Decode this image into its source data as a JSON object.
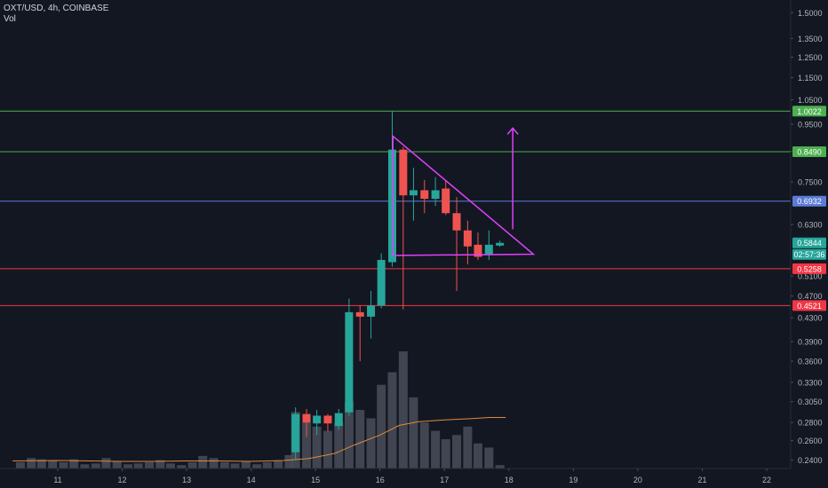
{
  "header": {
    "symbol_line": "OXT/USD, 4h, COINBASE",
    "volume_label": "Vol"
  },
  "colors": {
    "background": "#131722",
    "bull": "#26a69a",
    "bear": "#ef5350",
    "volume": "#4a4e59",
    "volume_ma": "#e08a3c",
    "resistance": "#4caf50",
    "support": "#f23645",
    "mid_level": "#5b7bd6",
    "pattern": "#e040fb",
    "axis_text": "#b2b5be"
  },
  "chart_data": {
    "type": "candlestick",
    "title": "OXT/USD, 4h, COINBASE",
    "y_axis": {
      "scale": "log",
      "ylim": [
        0.232,
        1.58
      ],
      "ticks": [
        "1.5000",
        "1.3500",
        "1.2500",
        "1.1500",
        "1.0500",
        "0.9500",
        "0.8500",
        "0.7500",
        "0.6300",
        "0.5100",
        "0.4700",
        "0.4300",
        "0.3900",
        "0.3600",
        "0.3300",
        "0.3050",
        "0.2800",
        "0.2600",
        "0.2400"
      ]
    },
    "x_axis": {
      "ticks": [
        "11",
        "12",
        "13",
        "14",
        "15",
        "16",
        "17",
        "18",
        "19",
        "20",
        "21",
        "22"
      ],
      "tick_day": [
        11,
        12,
        13,
        14,
        15,
        16,
        17,
        18,
        19,
        20,
        21,
        22
      ]
    },
    "candles": [
      {
        "t": 14.69,
        "o": 0.248,
        "h": 0.298,
        "l": 0.24,
        "c": 0.29
      },
      {
        "t": 14.86,
        "o": 0.29,
        "h": 0.296,
        "l": 0.264,
        "c": 0.28
      },
      {
        "t": 15.02,
        "o": 0.279,
        "h": 0.295,
        "l": 0.266,
        "c": 0.288
      },
      {
        "t": 15.19,
        "o": 0.288,
        "h": 0.29,
        "l": 0.27,
        "c": 0.279
      },
      {
        "t": 15.36,
        "o": 0.276,
        "h": 0.296,
        "l": 0.272,
        "c": 0.291
      },
      {
        "t": 15.52,
        "o": 0.292,
        "h": 0.465,
        "l": 0.288,
        "c": 0.44
      },
      {
        "t": 15.69,
        "o": 0.44,
        "h": 0.452,
        "l": 0.36,
        "c": 0.432
      },
      {
        "t": 15.86,
        "o": 0.432,
        "h": 0.48,
        "l": 0.395,
        "c": 0.452
      },
      {
        "t": 16.02,
        "o": 0.452,
        "h": 0.56,
        "l": 0.447,
        "c": 0.545
      },
      {
        "t": 16.19,
        "o": 0.54,
        "h": 1.003,
        "l": 0.53,
        "c": 0.856
      },
      {
        "t": 16.36,
        "o": 0.856,
        "h": 0.865,
        "l": 0.445,
        "c": 0.71
      },
      {
        "t": 16.52,
        "o": 0.71,
        "h": 0.795,
        "l": 0.64,
        "c": 0.725
      },
      {
        "t": 16.69,
        "o": 0.725,
        "h": 0.756,
        "l": 0.66,
        "c": 0.7
      },
      {
        "t": 16.86,
        "o": 0.7,
        "h": 0.765,
        "l": 0.68,
        "c": 0.725
      },
      {
        "t": 17.02,
        "o": 0.73,
        "h": 0.755,
        "l": 0.655,
        "c": 0.66
      },
      {
        "t": 17.19,
        "o": 0.66,
        "h": 0.705,
        "l": 0.48,
        "c": 0.615
      },
      {
        "t": 17.36,
        "o": 0.615,
        "h": 0.64,
        "l": 0.535,
        "c": 0.576
      },
      {
        "t": 17.52,
        "o": 0.58,
        "h": 0.61,
        "l": 0.545,
        "c": 0.552
      },
      {
        "t": 17.69,
        "o": 0.556,
        "h": 0.615,
        "l": 0.545,
        "c": 0.58
      },
      {
        "t": 17.86,
        "o": 0.578,
        "h": 0.59,
        "l": 0.575,
        "c": 0.5844
      }
    ],
    "volume": {
      "t": [
        10.42,
        10.59,
        10.75,
        10.92,
        11.09,
        11.25,
        11.42,
        11.59,
        11.75,
        11.92,
        12.09,
        12.25,
        12.42,
        12.59,
        12.75,
        12.92,
        13.09,
        13.25,
        13.42,
        13.59,
        13.75,
        13.92,
        14.09,
        14.25,
        14.42,
        14.59,
        14.69,
        14.86,
        15.02,
        15.19,
        15.36,
        15.52,
        15.69,
        15.86,
        16.02,
        16.19,
        16.36,
        16.52,
        16.69,
        16.86,
        17.02,
        17.19,
        17.36,
        17.52,
        17.69,
        17.86
      ],
      "v": [
        1.5,
        2.5,
        2.2,
        1.8,
        1.5,
        2.2,
        1.0,
        1.2,
        2.5,
        1.8,
        1.0,
        1.2,
        1.5,
        2.0,
        1.2,
        0.8,
        1.5,
        3.0,
        2.5,
        1.5,
        1.2,
        1.8,
        1.0,
        1.5,
        1.8,
        3.2,
        13.5,
        11,
        10,
        9,
        11,
        16,
        14,
        12,
        20,
        23,
        28,
        17,
        11,
        9,
        7,
        8,
        10,
        6,
        5,
        0.8
      ],
      "ma_t": [
        10.3,
        11.0,
        11.5,
        12.0,
        12.5,
        13.0,
        13.5,
        14.0,
        14.5,
        14.9,
        15.3,
        15.6,
        16.0,
        16.3,
        16.6,
        17.0,
        17.4,
        17.7,
        17.95
      ],
      "ma_v": [
        1.8,
        1.9,
        1.8,
        1.7,
        1.7,
        1.8,
        1.8,
        1.7,
        1.9,
        2.4,
        3.6,
        5.6,
        8.0,
        10.3,
        11.2,
        11.6,
        11.9,
        12.2,
        12.2
      ]
    },
    "levels": [
      {
        "price": 1.0022,
        "label": "1.0022",
        "kind": "resistance"
      },
      {
        "price": 0.849,
        "label": "0.8490",
        "kind": "resistance"
      },
      {
        "price": 0.6932,
        "label": "0.6932",
        "kind": "mid_level"
      },
      {
        "price": 0.5258,
        "label": "0.5258",
        "kind": "support"
      },
      {
        "price": 0.4521,
        "label": "0.4521",
        "kind": "support"
      }
    ],
    "last_price": {
      "price": 0.5844,
      "label": "0.5844",
      "countdown": "02:57:36"
    },
    "pattern": {
      "triangle": [
        {
          "t": 16.2,
          "p": 0.905
        },
        {
          "t": 18.38,
          "p": 0.558
        },
        {
          "t": 16.2,
          "p": 0.555
        }
      ],
      "arrow_from": {
        "t": 18.06,
        "p": 0.618
      },
      "arrow_to": {
        "t": 18.06,
        "p": 0.935
      }
    }
  }
}
